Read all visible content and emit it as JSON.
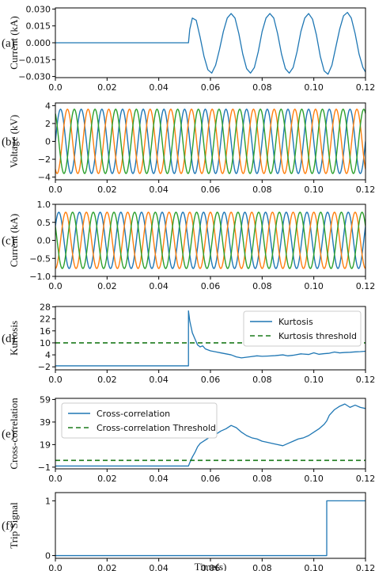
{
  "chart_data": [
    {
      "type": "line",
      "panel_tag": "(a)",
      "ylabel": "Current (kA)",
      "xlabel": "",
      "xlim": [
        0,
        0.12
      ],
      "ylim": [
        -0.031,
        0.031
      ],
      "xticks": [
        0,
        0.02,
        0.04,
        0.06,
        0.08,
        0.1,
        0.12
      ],
      "xtick_labels": [
        "0.0",
        "0.02",
        "0.04",
        "0.06",
        "0.08",
        "0.10",
        "0.12"
      ],
      "yticks": [
        -0.03,
        -0.015,
        0,
        0.015,
        0.03
      ],
      "ytick_labels": [
        "−0.030",
        "−0.015",
        "0.000",
        "0.015",
        "0.030"
      ],
      "legend": [],
      "series": [
        {
          "color": "#1f77b4",
          "x": [
            0,
            0.0515,
            0.052,
            0.053,
            0.0545,
            0.056,
            0.0575,
            0.059,
            0.0605,
            0.062,
            0.0635,
            0.065,
            0.0665,
            0.068,
            0.0695,
            0.071,
            0.0725,
            0.074,
            0.0755,
            0.077,
            0.0785,
            0.08,
            0.0815,
            0.083,
            0.0845,
            0.086,
            0.0875,
            0.089,
            0.0905,
            0.092,
            0.0935,
            0.095,
            0.0965,
            0.098,
            0.0995,
            0.101,
            0.1025,
            0.104,
            0.1055,
            0.107,
            0.1085,
            0.11,
            0.1115,
            0.113,
            0.1145,
            0.116,
            0.1175,
            0.119,
            0.12
          ],
          "y": [
            0,
            0,
            0.012,
            0.022,
            0.02,
            0.005,
            -0.012,
            -0.024,
            -0.027,
            -0.02,
            -0.006,
            0.01,
            0.022,
            0.026,
            0.022,
            0.008,
            -0.01,
            -0.023,
            -0.027,
            -0.022,
            -0.008,
            0.01,
            0.022,
            0.026,
            0.022,
            0.008,
            -0.01,
            -0.023,
            -0.027,
            -0.022,
            -0.008,
            0.01,
            0.022,
            0.026,
            0.021,
            0.007,
            -0.012,
            -0.025,
            -0.028,
            -0.02,
            -0.004,
            0.012,
            0.024,
            0.027,
            0.022,
            0.008,
            -0.01,
            -0.022,
            -0.026
          ]
        }
      ]
    },
    {
      "type": "line",
      "panel_tag": "(b)",
      "ylabel": "Voltage (kV)",
      "xlabel": "",
      "xlim": [
        0,
        0.12
      ],
      "ylim": [
        -4.3,
        4.3
      ],
      "xticks": [
        0,
        0.02,
        0.04,
        0.06,
        0.08,
        0.1,
        0.12
      ],
      "xtick_labels": [
        "0.0",
        "0.02",
        "0.04",
        "0.06",
        "0.08",
        "0.10",
        "0.12"
      ],
      "yticks": [
        -4,
        -2,
        0,
        2,
        4
      ],
      "ytick_labels": [
        "−4",
        "−2",
        "0",
        "2",
        "4"
      ],
      "legend": [],
      "sinusoids": [
        {
          "color": "#1f77b4",
          "amplitude": 3.6,
          "frequency_hz": 125,
          "phase_deg": 0
        },
        {
          "color": "#ff7f0e",
          "amplitude": 3.6,
          "frequency_hz": 125,
          "phase_deg": -120
        },
        {
          "color": "#2ca02c",
          "amplitude": 3.6,
          "frequency_hz": 125,
          "phase_deg": 120
        }
      ]
    },
    {
      "type": "line",
      "panel_tag": "(c)",
      "ylabel": "Current (kA)",
      "xlabel": "",
      "xlim": [
        0,
        0.12
      ],
      "ylim": [
        -1.0,
        1.0
      ],
      "xticks": [
        0,
        0.02,
        0.04,
        0.06,
        0.08,
        0.1,
        0.12
      ],
      "xtick_labels": [
        "0.0",
        "0.02",
        "0.04",
        "0.06",
        "0.08",
        "0.10",
        "0.12"
      ],
      "yticks": [
        -1.0,
        -0.5,
        0,
        0.5,
        1.0
      ],
      "ytick_labels": [
        "−1.0",
        "−0.5",
        "0.0",
        "0.5",
        "1.0"
      ],
      "legend": [],
      "sinusoids": [
        {
          "color": "#1f77b4",
          "amplitude": 0.78,
          "frequency_hz": 125,
          "phase_deg": 30
        },
        {
          "color": "#ff7f0e",
          "amplitude": 0.78,
          "frequency_hz": 125,
          "phase_deg": -90
        },
        {
          "color": "#2ca02c",
          "amplitude": 0.78,
          "frequency_hz": 125,
          "phase_deg": 150
        }
      ]
    },
    {
      "type": "line",
      "panel_tag": "(d)",
      "ylabel": "Kurtosis",
      "xlabel": "",
      "xlim": [
        0,
        0.12
      ],
      "ylim": [
        -3.5,
        28.2
      ],
      "xticks": [
        0,
        0.02,
        0.04,
        0.06,
        0.08,
        0.1,
        0.12
      ],
      "xtick_labels": [
        "0.0",
        "0.02",
        "0.04",
        "0.06",
        "0.08",
        "0.10",
        "0.12"
      ],
      "yticks": [
        -2,
        4,
        10,
        16,
        22,
        28
      ],
      "ytick_labels": [
        "−2",
        "4",
        "10",
        "16",
        "22",
        "28"
      ],
      "legend": [
        "Kurtosis",
        "Kurtosis threshold"
      ],
      "legend_position": "top-right",
      "series": [
        {
          "name": "Kurtosis",
          "color": "#1f77b4",
          "style": "solid",
          "x": [
            0,
            0.0515,
            0.0515,
            0.052,
            0.0525,
            0.053,
            0.054,
            0.055,
            0.056,
            0.057,
            0.058,
            0.06,
            0.062,
            0.064,
            0.066,
            0.068,
            0.07,
            0.072,
            0.075,
            0.078,
            0.08,
            0.082,
            0.085,
            0.088,
            0.09,
            0.092,
            0.095,
            0.098,
            0.1,
            0.102,
            0.104,
            0.106,
            0.108,
            0.11,
            0.112,
            0.114,
            0.116,
            0.118,
            0.12
          ],
          "y": [
            -1.5,
            -1.5,
            26,
            21,
            18,
            15,
            12,
            9,
            8,
            8.5,
            7,
            6,
            5.5,
            5,
            4.5,
            4,
            3,
            2.5,
            3,
            3.5,
            3.3,
            3.4,
            3.6,
            4,
            3.5,
            3.8,
            4.5,
            4.2,
            5,
            4.3,
            4.6,
            4.8,
            5.4,
            5,
            5.2,
            5.3,
            5.5,
            5.6,
            5.8
          ]
        },
        {
          "name": "Kurtosis threshold",
          "color": "#1b7a1b",
          "style": "dashed",
          "x": [
            0,
            0.12
          ],
          "y": [
            10,
            10
          ]
        }
      ]
    },
    {
      "type": "line",
      "panel_tag": "(e)",
      "ylabel": "Cross-correlation",
      "xlabel": "",
      "xlim": [
        0,
        0.12
      ],
      "ylim": [
        -2.5,
        60
      ],
      "xticks": [
        0,
        0.02,
        0.04,
        0.06,
        0.08,
        0.1,
        0.12
      ],
      "xtick_labels": [
        "0.0",
        "0.02",
        "0.04",
        "0.06",
        "0.08",
        "0.10",
        "0.12"
      ],
      "yticks": [
        -1,
        19,
        39,
        59
      ],
      "ytick_labels": [
        "−1",
        "19",
        "39",
        "59"
      ],
      "legend": [
        "Cross-correlation",
        "Cross-correlation Threshold"
      ],
      "legend_position": "top-left",
      "series": [
        {
          "name": "Cross-correlation",
          "color": "#1f77b4",
          "style": "solid",
          "x": [
            0,
            0.0515,
            0.052,
            0.053,
            0.054,
            0.055,
            0.056,
            0.058,
            0.06,
            0.062,
            0.064,
            0.066,
            0.068,
            0.07,
            0.072,
            0.074,
            0.076,
            0.078,
            0.08,
            0.082,
            0.084,
            0.086,
            0.088,
            0.09,
            0.092,
            0.094,
            0.096,
            0.098,
            0.1,
            0.102,
            0.104,
            0.105,
            0.106,
            0.108,
            0.11,
            0.112,
            0.114,
            0.116,
            0.118,
            0.12
          ],
          "y": [
            0,
            0,
            3,
            8,
            12,
            17,
            20,
            23,
            26,
            28,
            31,
            33,
            36,
            34,
            30,
            27,
            25,
            24,
            22,
            21,
            20,
            19,
            18,
            20,
            22,
            24,
            25,
            27,
            30,
            33,
            37,
            40,
            45,
            50,
            53,
            55,
            52,
            54,
            52,
            51
          ]
        },
        {
          "name": "Cross-correlation Threshold",
          "color": "#1b7a1b",
          "style": "dashed",
          "x": [
            0,
            0.12
          ],
          "y": [
            5,
            5
          ]
        }
      ]
    },
    {
      "type": "line",
      "panel_tag": "(f)",
      "ylabel": "Trip Signal",
      "xlabel": "Time(s)",
      "xlim": [
        0,
        0.12
      ],
      "ylim": [
        -0.05,
        1.15
      ],
      "xticks": [
        0,
        0.02,
        0.04,
        0.06,
        0.08,
        0.1,
        0.12
      ],
      "xtick_labels": [
        "0.0",
        "0.02",
        "0.04",
        "0.06",
        "0.08",
        "0.10",
        "0.12"
      ],
      "yticks": [
        0,
        1
      ],
      "ytick_labels": [
        "0",
        "1"
      ],
      "legend": [],
      "series": [
        {
          "color": "#1f77b4",
          "style": "solid",
          "x": [
            0,
            0.105,
            0.105,
            0.12
          ],
          "y": [
            0,
            0,
            1,
            1
          ]
        }
      ]
    }
  ]
}
